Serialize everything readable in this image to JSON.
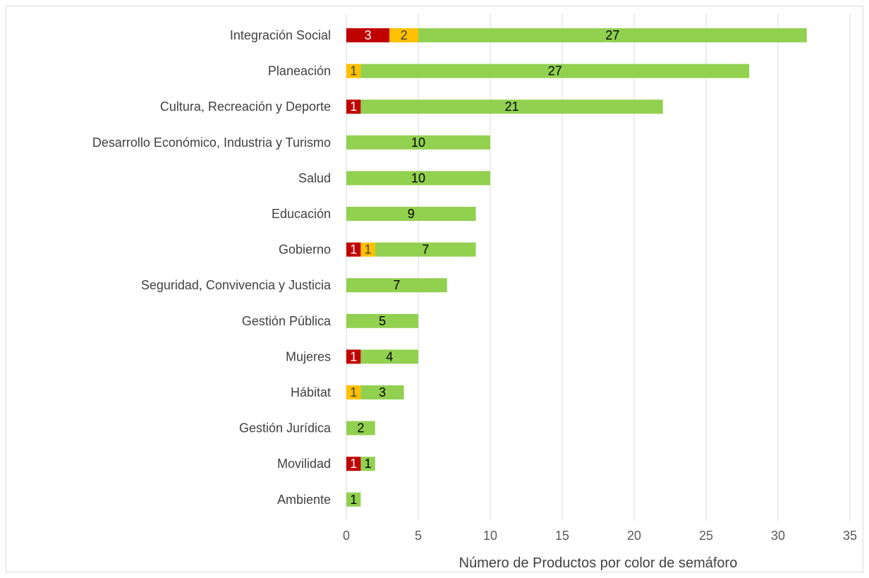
{
  "chart_data": {
    "type": "bar",
    "orientation": "horizontal",
    "stacked": true,
    "title": "",
    "xlabel": "Número de Productos por color de semáforo",
    "ylabel": "",
    "xlim": [
      0,
      35
    ],
    "xticks": [
      0,
      5,
      10,
      15,
      20,
      25,
      30,
      35
    ],
    "grid": "vertical",
    "legend": "none",
    "categories": [
      "Integración Social",
      "Planeación",
      "Cultura, Recreación y Deporte",
      "Desarrollo Económico, Industria y Turismo",
      "Salud",
      "Educación",
      "Gobierno",
      "Seguridad, Convivencia y Justicia",
      "Gestión Pública",
      "Mujeres",
      "Hábitat",
      "Gestión Jurídica",
      "Movilidad",
      "Ambiente"
    ],
    "series": [
      {
        "color": "#c00000",
        "label_color": "#ffffff",
        "values": [
          3,
          0,
          1,
          0,
          0,
          0,
          1,
          0,
          0,
          1,
          0,
          0,
          1,
          0
        ]
      },
      {
        "color": "#ffc000",
        "label_color": "#404040",
        "values": [
          2,
          1,
          0,
          0,
          0,
          0,
          1,
          0,
          0,
          0,
          1,
          0,
          0,
          0
        ]
      },
      {
        "color": "#92d050",
        "label_color": "#000000",
        "values": [
          27,
          27,
          21,
          10,
          10,
          9,
          7,
          7,
          5,
          4,
          3,
          2,
          1,
          1
        ]
      }
    ]
  }
}
